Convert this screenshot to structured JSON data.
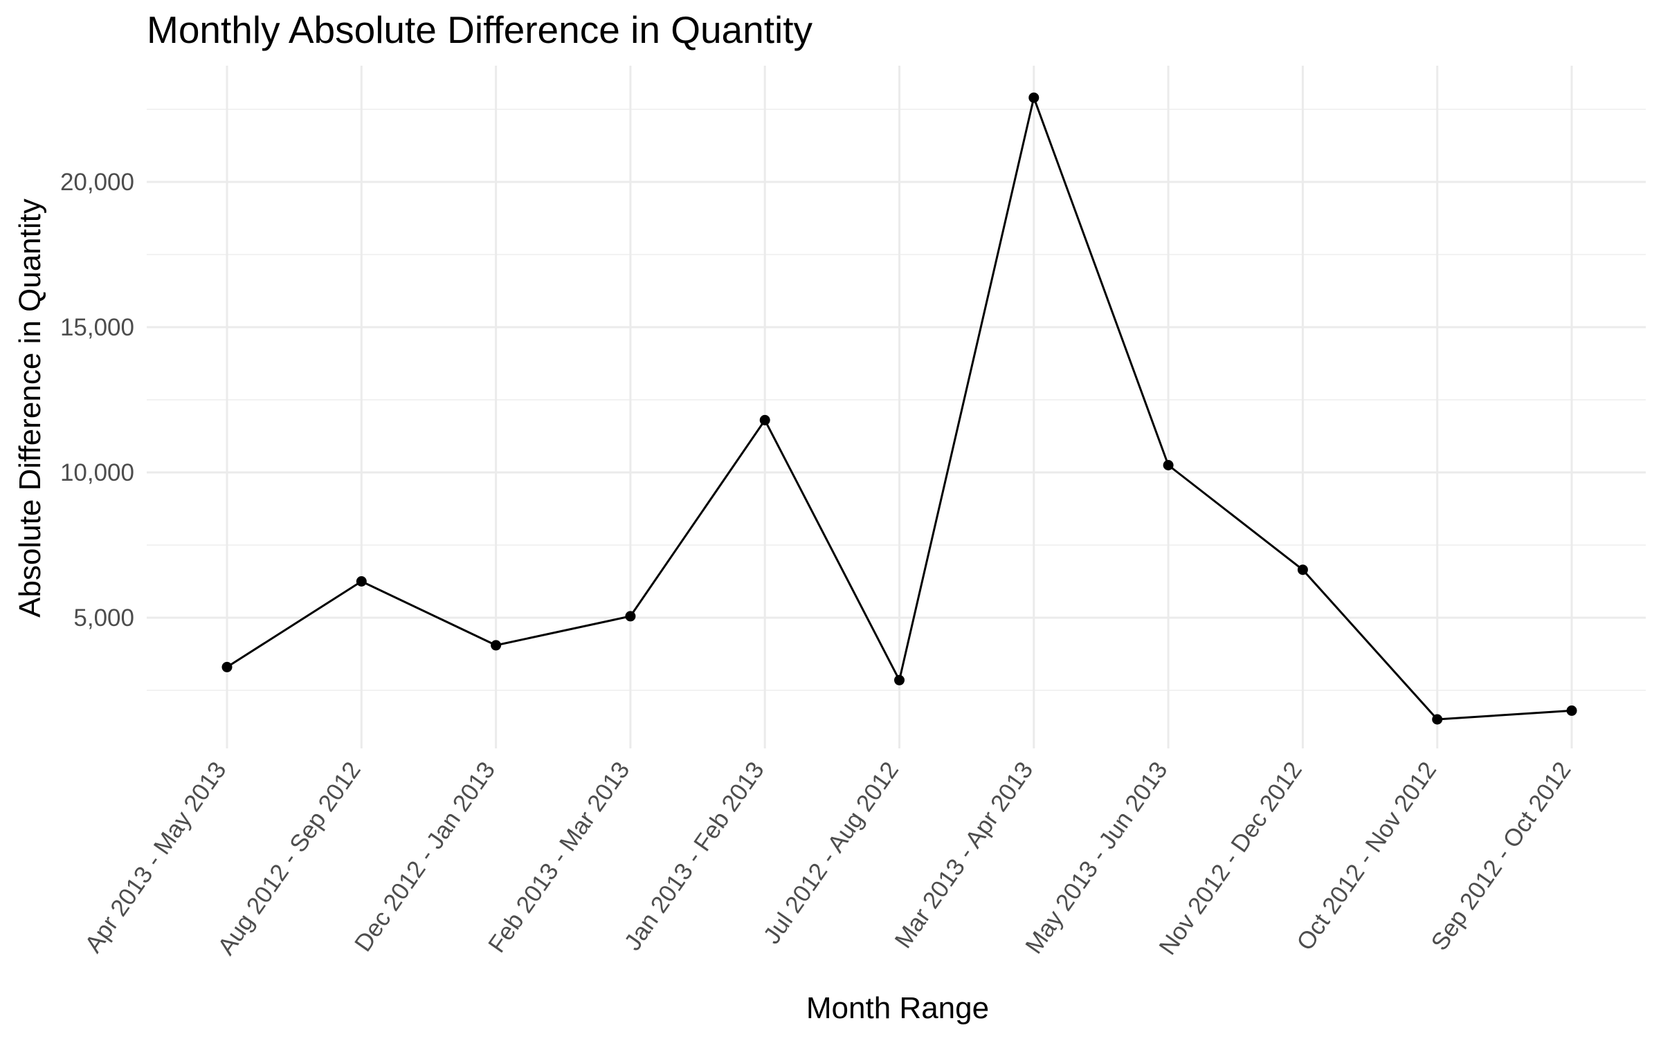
{
  "chart_data": {
    "type": "line",
    "title": "Monthly Absolute Difference in Quantity",
    "xlabel": "Month Range",
    "ylabel": "Absolute Difference in Quantity",
    "categories": [
      "Apr 2013 - May 2013",
      "Aug 2012 - Sep 2012",
      "Dec 2012 - Jan 2013",
      "Feb 2013 - Mar 2013",
      "Jan 2013 - Feb 2013",
      "Jul 2012 - Aug 2012",
      "Mar 2013 - Apr 2013",
      "May 2013 - Jun 2013",
      "Nov 2012 - Dec 2012",
      "Oct 2012 - Nov 2012",
      "Sep 2012 - Oct 2012"
    ],
    "values": [
      3300,
      6250,
      4050,
      5050,
      11800,
      2850,
      22900,
      10250,
      6650,
      1500,
      1800
    ],
    "ylim": [
      500,
      24000
    ],
    "yticks": [
      5000,
      10000,
      15000,
      20000
    ],
    "ytick_labels": [
      "5,000",
      "10,000",
      "15,000",
      "20,000"
    ],
    "grid": true,
    "line_color": "#000000"
  }
}
